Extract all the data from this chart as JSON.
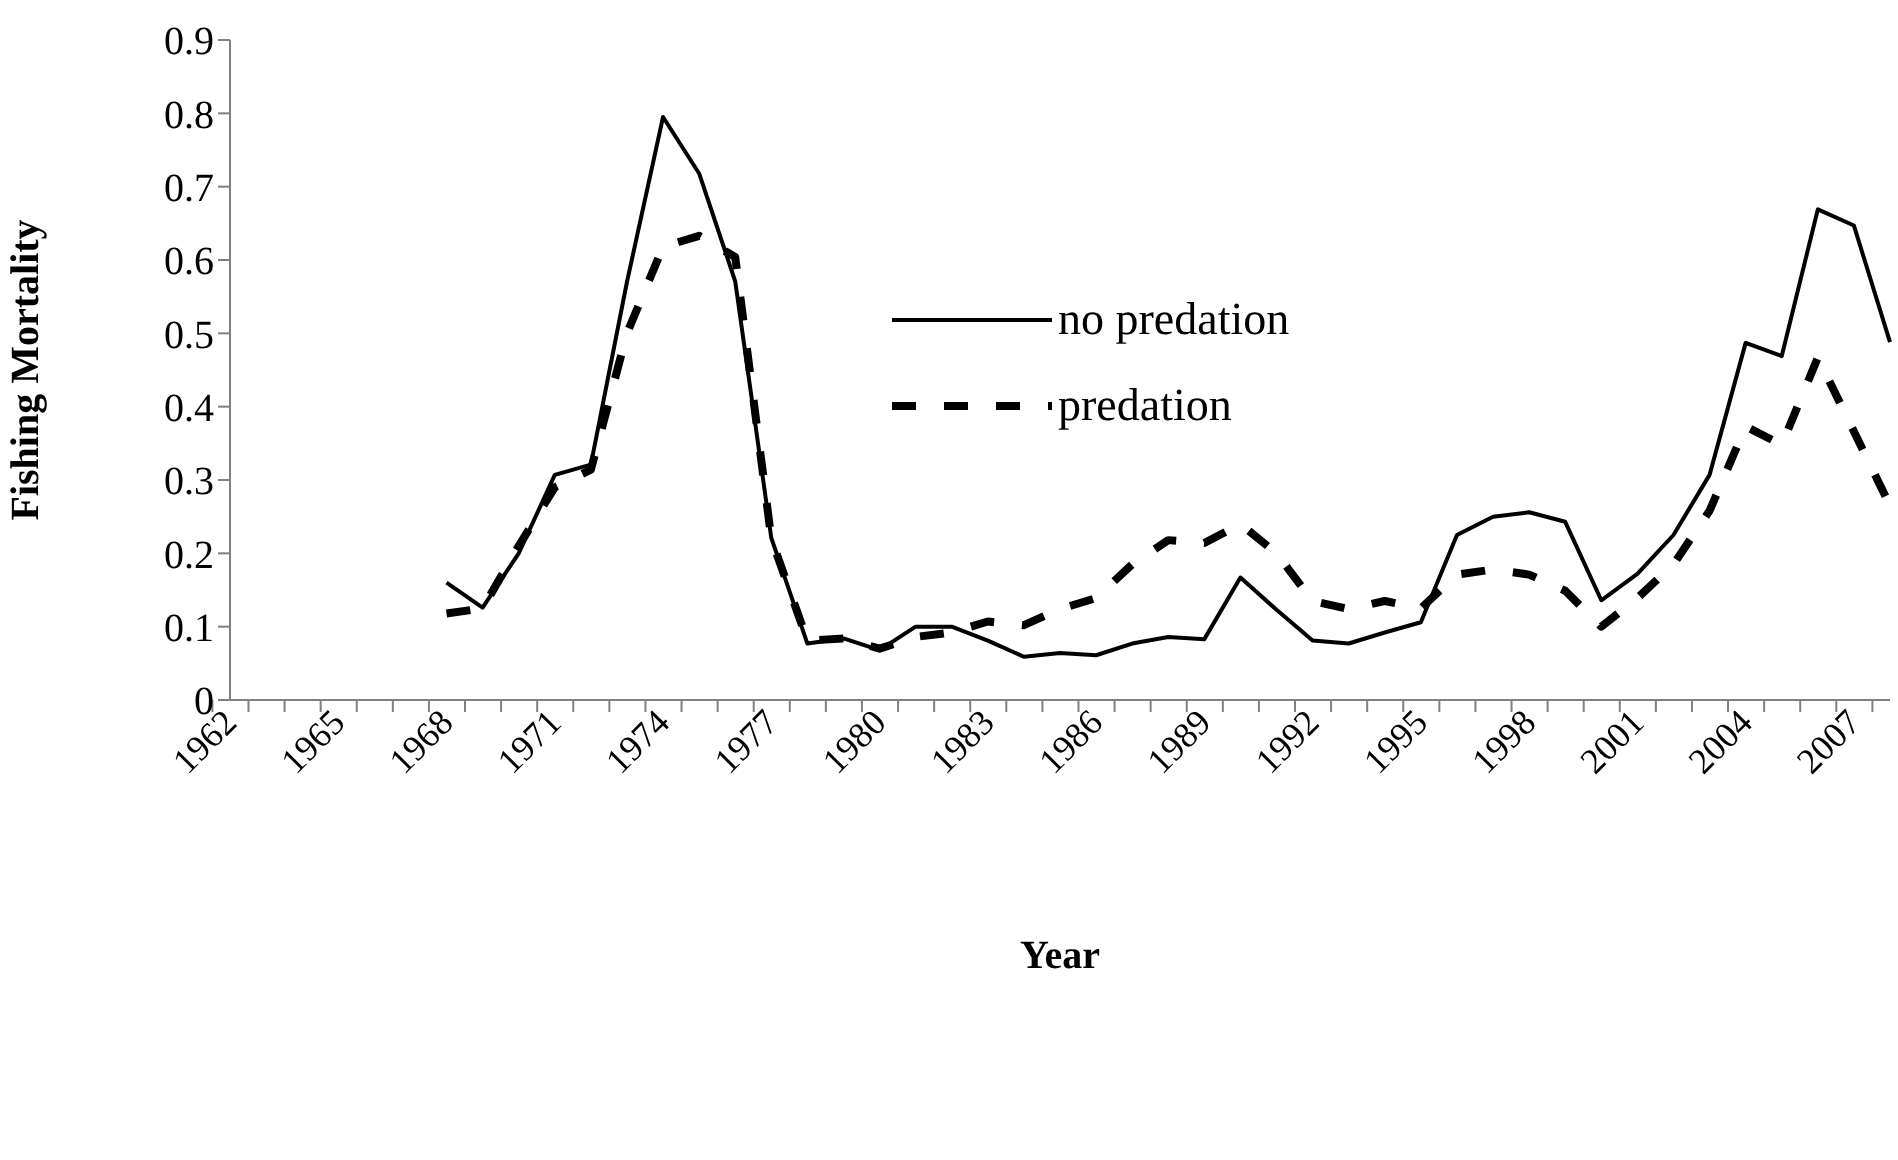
{
  "chart_data": {
    "type": "line",
    "xlabel": "Year",
    "ylabel": "Fishing Mortality",
    "categories": [
      "1962",
      null,
      null,
      "1965",
      null,
      null,
      "1968",
      null,
      null,
      "1971",
      null,
      null,
      "1974",
      null,
      null,
      "1977",
      null,
      null,
      "1980",
      null,
      null,
      "1983",
      null,
      null,
      "1986",
      null,
      null,
      "1989",
      null,
      null,
      "1992",
      null,
      null,
      "1995",
      null,
      null,
      "1998",
      null,
      null,
      "2001",
      null,
      null,
      "2004",
      null,
      null,
      "2007",
      null
    ],
    "ylim": [
      0,
      0.9
    ],
    "yticks": [
      0,
      0.1,
      0.2,
      0.3,
      0.4,
      0.5,
      0.6,
      0.7,
      0.8,
      0.9
    ],
    "legend": "top",
    "marker": "none",
    "series": [
      {
        "name": "no predation",
        "color": "#000000",
        "line_style": "solid",
        "values": [
          null,
          null,
          null,
          null,
          null,
          null,
          0.16,
          0.126,
          0.2,
          0.307,
          0.321,
          0.57,
          0.795,
          0.718,
          0.571,
          0.221,
          0.077,
          0.084,
          0.068,
          0.1,
          0.1,
          0.081,
          0.059,
          0.064,
          0.061,
          0.077,
          0.086,
          0.083,
          0.167,
          0.123,
          0.081,
          0.077,
          0.092,
          0.106,
          0.225,
          0.25,
          0.256,
          0.243,
          0.136,
          0.172,
          0.225,
          0.307,
          0.487,
          0.469,
          0.669,
          0.647,
          0.488
        ]
      },
      {
        "name": "predation",
        "color": "#000000",
        "line_style": "dashed",
        "values": [
          null,
          null,
          null,
          null,
          null,
          null,
          0.118,
          0.125,
          0.21,
          0.29,
          0.314,
          0.5,
          0.618,
          0.633,
          0.604,
          0.22,
          0.081,
          0.084,
          0.07,
          0.086,
          0.092,
          0.107,
          0.102,
          0.124,
          0.139,
          0.185,
          0.218,
          0.214,
          0.24,
          0.2,
          0.135,
          0.124,
          0.135,
          0.125,
          0.171,
          0.178,
          0.171,
          0.149,
          0.1,
          0.139,
          0.185,
          0.258,
          0.373,
          0.348,
          0.467,
          0.366,
          0.265
        ]
      }
    ]
  }
}
